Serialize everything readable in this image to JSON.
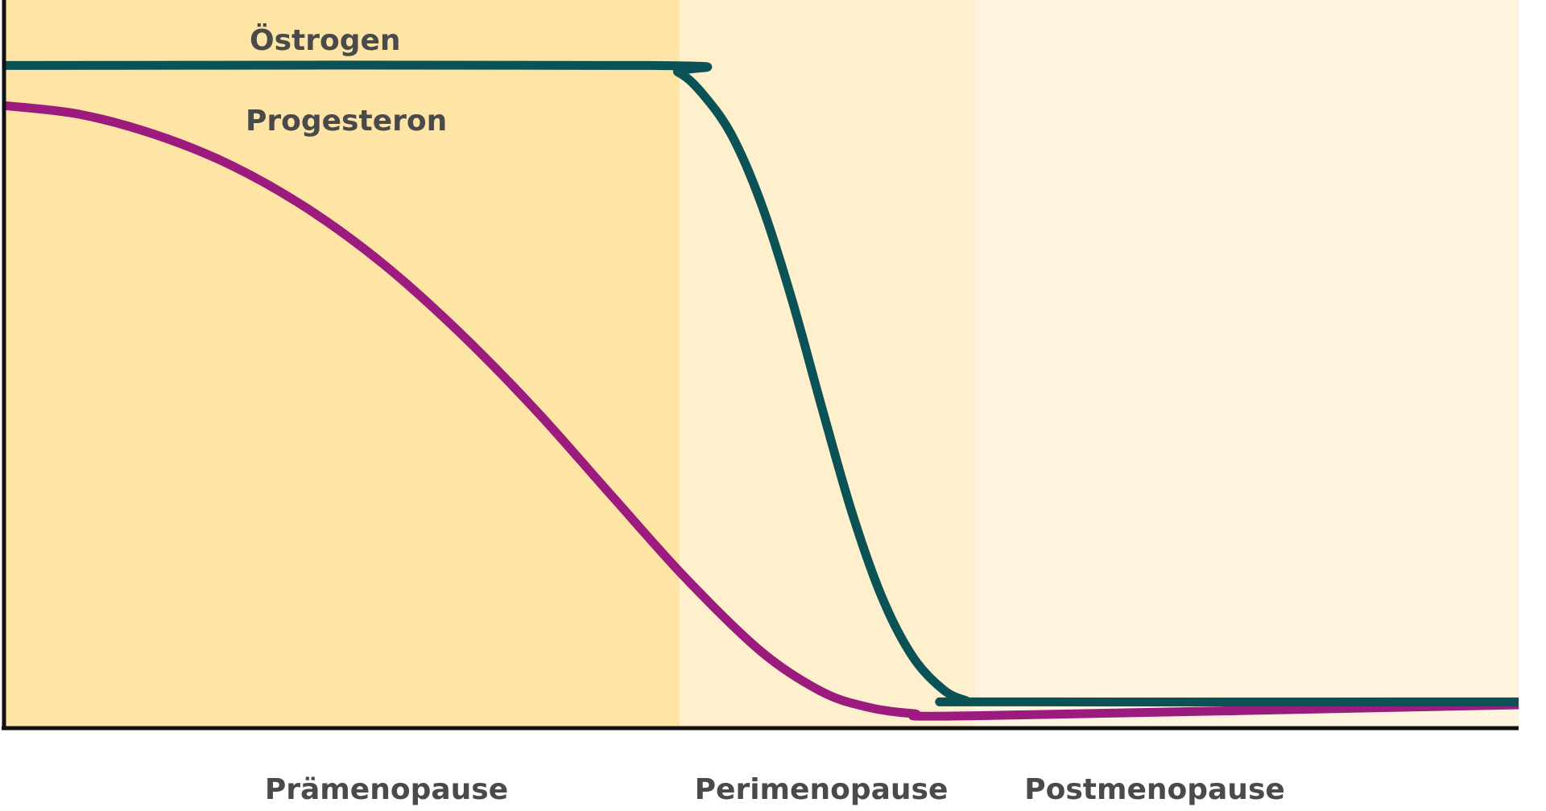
{
  "chart_data": {
    "type": "line",
    "title": "",
    "xlabel": "",
    "ylabel": "",
    "phases": [
      {
        "name": "Prämenopause",
        "color": "#FEE5A5",
        "range": [
          0,
          44.6
        ]
      },
      {
        "name": "Perimenopause",
        "color": "#FEF0CC",
        "range": [
          44.6,
          64.1
        ]
      },
      {
        "name": "Postmenopause",
        "color": "#FFF5DF",
        "range": [
          64.1,
          100
        ]
      }
    ],
    "xlim": [
      0,
      100
    ],
    "ylim": [
      0,
      100
    ],
    "grid": false,
    "series": [
      {
        "name": "Östrogen",
        "color": "#0B5256",
        "x": [
          0,
          42.8,
          44.5,
          46.0,
          48.0,
          50.0,
          52.0,
          54.0,
          56.0,
          58.0,
          60.0,
          62.0,
          63.5,
          64.7,
          100
        ],
        "y": [
          91.0,
          91.0,
          90.1,
          87.4,
          81.6,
          72.0,
          59.0,
          44.0,
          29.5,
          17.8,
          9.8,
          5.3,
          3.8,
          3.6,
          3.6
        ]
      },
      {
        "name": "Progesteron",
        "color": "#9B1B7E",
        "x": [
          0,
          5,
          10,
          15,
          20,
          25,
          30,
          35,
          40,
          45,
          50,
          54,
          57,
          60,
          64.1,
          100
        ],
        "y": [
          85.5,
          84.3,
          81.5,
          77.3,
          71.4,
          63.8,
          54.5,
          43.9,
          32.2,
          20.6,
          10.5,
          5.0,
          2.9,
          2.0,
          1.7,
          3.2
        ]
      }
    ]
  }
}
